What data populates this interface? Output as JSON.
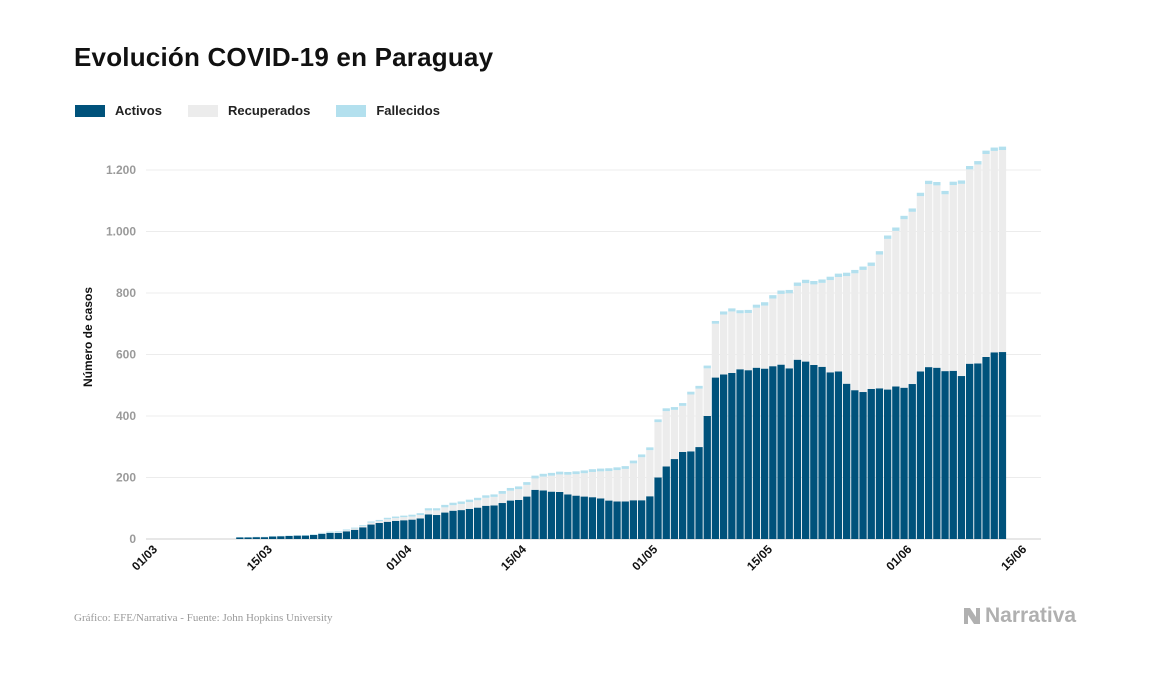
{
  "chart_data": {
    "type": "bar",
    "stacked": true,
    "title": "Evolución COVID-19 en Paraguay",
    "ylabel": "Número de casos",
    "ylim": [
      0,
      1300
    ],
    "yticks": [
      0,
      200,
      400,
      600,
      800,
      1000,
      1200
    ],
    "ytick_labels": [
      "0",
      "200",
      "400",
      "600",
      "800",
      "1.000",
      "1.200"
    ],
    "x_start": "01/03",
    "xtick_labels": [
      "01/03",
      "15/03",
      "01/04",
      "15/04",
      "01/05",
      "15/05",
      "01/06",
      "15/06"
    ],
    "xtick_index": [
      0,
      14,
      31,
      45,
      61,
      75,
      92,
      106
    ],
    "grid": true,
    "legend_position": "top-left",
    "series": [
      {
        "name": "Activos",
        "color": "#00527b",
        "values": [
          0,
          0,
          0,
          0,
          0,
          0,
          0,
          0,
          0,
          0,
          0,
          5,
          5,
          6,
          6,
          8,
          9,
          10,
          11,
          11,
          13,
          17,
          20,
          20,
          25,
          30,
          38,
          47,
          52,
          56,
          59,
          61,
          63,
          67,
          80,
          78,
          86,
          92,
          94,
          98,
          102,
          108,
          109,
          117,
          125,
          127,
          138,
          160,
          158,
          154,
          153,
          145,
          141,
          138,
          136,
          132,
          125,
          122,
          122,
          126,
          126,
          139,
          200,
          236,
          260,
          283,
          285,
          299,
          400,
          525,
          535,
          540,
          552,
          549,
          557,
          554,
          562,
          567,
          555,
          583,
          577,
          566,
          560,
          542,
          545,
          505,
          484,
          478,
          488,
          490,
          486,
          496,
          492,
          504,
          545,
          559,
          557,
          546,
          547,
          530,
          570,
          571,
          592,
          607,
          608
        ]
      },
      {
        "name": "Recuperados",
        "color": "#ececec",
        "values": [
          0,
          0,
          0,
          0,
          0,
          0,
          0,
          0,
          0,
          0,
          0,
          0,
          0,
          0,
          0,
          0,
          0,
          0,
          0,
          0,
          0,
          1,
          1,
          2,
          3,
          4,
          4,
          6,
          6,
          8,
          9,
          10,
          10,
          11,
          13,
          15,
          17,
          18,
          20,
          22,
          24,
          26,
          28,
          30,
          32,
          35,
          38,
          37,
          45,
          52,
          57,
          64,
          70,
          76,
          82,
          88,
          96,
          102,
          106,
          120,
          140,
          150,
          180,
          180,
          160,
          150,
          185,
          190,
          155,
          175,
          195,
          200,
          182,
          186,
          195,
          205,
          220,
          230,
          244,
          240,
          255,
          262,
          273,
          300,
          307,
          350,
          380,
          397,
          400,
          435,
          490,
          506,
          548,
          560,
          570,
          595,
          593,
          575,
          604,
          625,
          632,
          647,
          660,
          655,
          657
        ]
      },
      {
        "name": "Fallecidos",
        "color": "#b3e0ee",
        "values": [
          0,
          0,
          0,
          0,
          0,
          0,
          0,
          0,
          0,
          0,
          0,
          1,
          1,
          1,
          1,
          1,
          1,
          1,
          1,
          2,
          2,
          2,
          3,
          3,
          3,
          3,
          3,
          4,
          4,
          5,
          5,
          5,
          6,
          6,
          7,
          7,
          8,
          8,
          8,
          8,
          8,
          8,
          8,
          9,
          9,
          9,
          9,
          9,
          9,
          9,
          9,
          9,
          9,
          9,
          9,
          9,
          9,
          9,
          9,
          9,
          9,
          9,
          9,
          9,
          9,
          9,
          9,
          9,
          9,
          9,
          10,
          10,
          10,
          10,
          10,
          11,
          11,
          11,
          11,
          11,
          11,
          11,
          11,
          11,
          11,
          11,
          11,
          11,
          11,
          11,
          11,
          11,
          11,
          11,
          11,
          11,
          11,
          11,
          11,
          11,
          11,
          11,
          11,
          11,
          11
        ]
      }
    ]
  },
  "footer": {
    "source": "Gráfico: EFE/Narrativa - Fuente: John Hopkins University",
    "brand": "Narrativa"
  }
}
